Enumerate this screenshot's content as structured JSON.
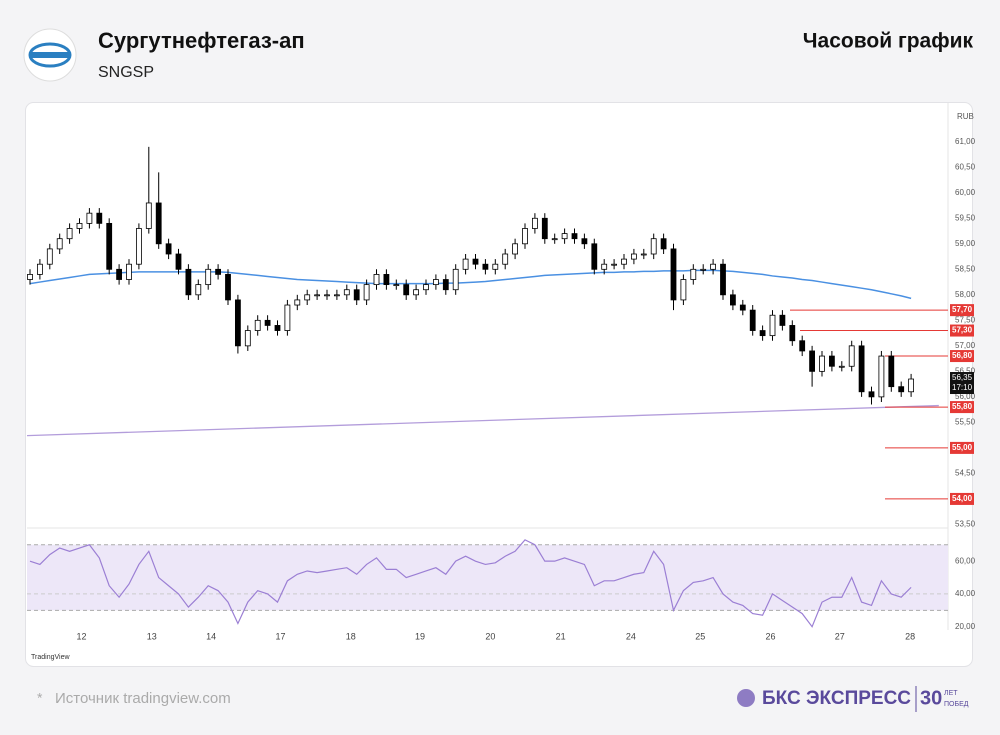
{
  "header": {
    "title": "Сургутнефтегаз-ап",
    "ticker": "SNGSP",
    "timeframe": "Часовой график"
  },
  "footer": {
    "star": "*",
    "source": "Источник tradingview.com",
    "brand": "БКС ЭКСПРЕСС",
    "years": "30",
    "years_text1": "ЛЕТ",
    "years_text2": "ПОБЕД"
  },
  "chart_data": {
    "type": "candlestick",
    "currency": "RUB",
    "watermark": "TradingView",
    "ylim": [
      53.45,
      61.72
    ],
    "yticks": [
      {
        "value": 61,
        "label": "61,00"
      },
      {
        "value": 60.5,
        "label": "60,50"
      },
      {
        "value": 60,
        "label": "60,00"
      },
      {
        "value": 59.5,
        "label": "59,50"
      },
      {
        "value": 59,
        "label": "59,00"
      },
      {
        "value": 58.5,
        "label": "58,50"
      },
      {
        "value": 58,
        "label": "58,00"
      },
      {
        "value": 57.5,
        "label": "57,50"
      },
      {
        "value": 57,
        "label": "57,00"
      },
      {
        "value": 56.5,
        "label": "56,50"
      },
      {
        "value": 56,
        "label": "56,00"
      },
      {
        "value": 55.5,
        "label": "55,50"
      },
      {
        "value": 54.5,
        "label": "54,50"
      },
      {
        "value": 53.5,
        "label": "53,50"
      }
    ],
    "xticks": [
      {
        "value": 5.2,
        "label": "12"
      },
      {
        "value": 12.3,
        "label": "13"
      },
      {
        "value": 18.3,
        "label": "14"
      },
      {
        "value": 25.3,
        "label": "17"
      },
      {
        "value": 32.4,
        "label": "18"
      },
      {
        "value": 39.4,
        "label": "19"
      },
      {
        "value": 46.5,
        "label": "20"
      },
      {
        "value": 53.6,
        "label": "21"
      },
      {
        "value": 60.7,
        "label": "24"
      },
      {
        "value": 67.7,
        "label": "25"
      },
      {
        "value": 74.8,
        "label": "26"
      },
      {
        "value": 81.8,
        "label": "27"
      },
      {
        "value": 88.9,
        "label": "28"
      }
    ],
    "open": [
      58.3,
      58.4,
      58.6,
      58.9,
      59.1,
      59.3,
      59.4,
      59.6,
      59.4,
      58.5,
      58.3,
      58.6,
      59.3,
      59.8,
      59.0,
      58.8,
      58.5,
      58.0,
      58.2,
      58.5,
      58.4,
      57.9,
      57.0,
      57.3,
      57.5,
      57.4,
      57.3,
      57.8,
      57.9,
      58.0,
      58.0,
      58.0,
      58.0,
      58.1,
      57.9,
      58.2,
      58.4,
      58.2,
      58.2,
      58.0,
      58.1,
      58.2,
      58.3,
      58.1,
      58.5,
      58.7,
      58.6,
      58.5,
      58.6,
      58.8,
      59.0,
      59.3,
      59.5,
      59.1,
      59.1,
      59.2,
      59.1,
      59.0,
      58.5,
      58.6,
      58.6,
      58.7,
      58.8,
      58.8,
      59.1,
      58.9,
      57.9,
      58.3,
      58.5,
      58.5,
      58.6,
      58.0,
      57.8,
      57.7,
      57.3,
      57.2,
      57.6,
      57.4,
      57.1,
      56.9,
      56.5,
      56.8,
      56.6,
      56.6,
      57.0,
      56.1,
      56.0,
      56.8,
      56.2,
      56.1
    ],
    "high": [
      58.5,
      58.7,
      59.0,
      59.2,
      59.4,
      59.5,
      59.7,
      59.7,
      59.5,
      58.6,
      58.7,
      59.4,
      60.9,
      60.4,
      59.1,
      58.9,
      58.6,
      58.3,
      58.6,
      58.6,
      58.5,
      58.0,
      57.4,
      57.6,
      57.6,
      57.5,
      57.9,
      58.0,
      58.1,
      58.1,
      58.1,
      58.1,
      58.2,
      58.2,
      58.3,
      58.5,
      58.5,
      58.3,
      58.3,
      58.2,
      58.3,
      58.4,
      58.4,
      58.6,
      58.8,
      58.8,
      58.7,
      58.7,
      58.9,
      59.1,
      59.4,
      59.6,
      59.6,
      59.2,
      59.3,
      59.3,
      59.2,
      59.1,
      58.7,
      58.7,
      58.8,
      58.9,
      58.9,
      59.2,
      59.2,
      59.0,
      58.4,
      58.6,
      58.6,
      58.7,
      58.7,
      58.1,
      57.9,
      57.8,
      57.4,
      57.7,
      57.7,
      57.5,
      57.2,
      57.0,
      56.9,
      56.9,
      56.7,
      57.1,
      57.1,
      56.2,
      56.9,
      56.9,
      56.3,
      56.45
    ],
    "low": [
      58.2,
      58.3,
      58.5,
      58.8,
      59.0,
      59.2,
      59.3,
      59.3,
      58.4,
      58.2,
      58.2,
      58.5,
      59.2,
      58.9,
      58.7,
      58.4,
      57.9,
      57.9,
      58.1,
      58.3,
      57.8,
      56.85,
      56.9,
      57.2,
      57.3,
      57.2,
      57.2,
      57.7,
      57.8,
      57.9,
      57.9,
      57.9,
      57.9,
      57.8,
      57.8,
      58.1,
      58.1,
      58.1,
      57.9,
      57.9,
      58.0,
      58.1,
      58.0,
      58.0,
      58.4,
      58.5,
      58.4,
      58.4,
      58.5,
      58.7,
      58.9,
      59.2,
      59.0,
      59.0,
      59.0,
      59.0,
      58.9,
      58.4,
      58.4,
      58.5,
      58.5,
      58.6,
      58.7,
      58.7,
      58.8,
      57.7,
      57.8,
      58.2,
      58.4,
      58.4,
      57.9,
      57.7,
      57.6,
      57.2,
      57.1,
      57.1,
      57.3,
      57.0,
      56.8,
      56.2,
      56.4,
      56.5,
      56.5,
      56.5,
      56.0,
      55.85,
      55.9,
      56.1,
      56.0,
      56.0
    ],
    "close": [
      58.4,
      58.6,
      58.9,
      59.1,
      59.3,
      59.4,
      59.6,
      59.4,
      58.5,
      58.3,
      58.6,
      59.3,
      59.8,
      59.0,
      58.8,
      58.5,
      58.0,
      58.2,
      58.5,
      58.4,
      57.9,
      57.0,
      57.3,
      57.5,
      57.4,
      57.3,
      57.8,
      57.9,
      58.0,
      58.0,
      58.0,
      58.0,
      58.1,
      57.9,
      58.2,
      58.4,
      58.2,
      58.2,
      58.0,
      58.1,
      58.2,
      58.3,
      58.1,
      58.5,
      58.7,
      58.6,
      58.5,
      58.6,
      58.8,
      59.0,
      59.3,
      59.5,
      59.1,
      59.1,
      59.2,
      59.1,
      59.0,
      58.5,
      58.6,
      58.6,
      58.7,
      58.8,
      58.8,
      59.1,
      58.9,
      57.9,
      58.3,
      58.5,
      58.5,
      58.6,
      58.0,
      57.8,
      57.7,
      57.3,
      57.2,
      57.6,
      57.4,
      57.1,
      56.9,
      56.5,
      56.8,
      56.6,
      56.6,
      57.0,
      56.1,
      56.0,
      56.8,
      56.2,
      56.1,
      56.35
    ],
    "ma": {
      "color": "#4a90e2",
      "values": [
        58.22,
        58.25,
        58.28,
        58.31,
        58.34,
        58.37,
        58.4,
        58.41,
        58.42,
        58.43,
        58.44,
        58.45,
        58.45,
        58.45,
        58.45,
        58.45,
        58.45,
        58.45,
        58.45,
        58.45,
        58.44,
        58.42,
        58.4,
        58.38,
        58.36,
        58.34,
        58.32,
        58.3,
        58.29,
        58.28,
        58.27,
        58.26,
        58.25,
        58.24,
        58.23,
        58.22,
        58.22,
        58.22,
        58.22,
        58.22,
        58.22,
        58.22,
        58.23,
        58.23,
        58.24,
        58.25,
        58.26,
        58.28,
        58.3,
        58.32,
        58.34,
        58.36,
        58.38,
        58.39,
        58.4,
        58.41,
        58.42,
        58.43,
        58.44,
        58.44,
        58.45,
        58.45,
        58.46,
        58.46,
        58.47,
        58.47,
        58.47,
        58.48,
        58.48,
        58.48,
        58.47,
        58.46,
        58.44,
        58.42,
        58.4,
        58.37,
        58.35,
        58.33,
        58.3,
        58.28,
        58.25,
        58.22,
        58.19,
        58.16,
        58.13,
        58.1,
        58.06,
        58.02,
        57.98,
        57.93
      ]
    },
    "trendline": {
      "color": "#b39ddb",
      "x": [
        -0.3,
        91.8
      ],
      "y": [
        55.24,
        55.83
      ]
    },
    "levels": {
      "color": "#e53935",
      "values": [
        57.7,
        57.3,
        56.8,
        55.8,
        55.0,
        54.0
      ],
      "value_labels": [
        "57,70",
        "57,30",
        "56,80",
        "55,80",
        "55,00",
        "54,00"
      ]
    },
    "last": {
      "value": 56.35,
      "label": "56,35",
      "time": "17:10"
    },
    "rsi": {
      "color": "#9b7fd4",
      "ylim": [
        18,
        79
      ],
      "band": [
        30,
        70
      ],
      "yticks": [
        {
          "value": 60,
          "label": "60,00"
        },
        {
          "value": 40,
          "label": "40,00"
        },
        {
          "value": 20,
          "label": "20,00"
        }
      ],
      "values": [
        60,
        58,
        64,
        68,
        66,
        68,
        70,
        62,
        45,
        38,
        46,
        58,
        66,
        50,
        45,
        40,
        32,
        38,
        45,
        42,
        35,
        22,
        35,
        42,
        40,
        35,
        48,
        52,
        54,
        53,
        54,
        55,
        56,
        52,
        58,
        62,
        55,
        55,
        50,
        52,
        54,
        56,
        52,
        60,
        63,
        60,
        58,
        59,
        63,
        66,
        73,
        70,
        60,
        60,
        62,
        60,
        58,
        45,
        48,
        48,
        50,
        52,
        53,
        66,
        58,
        30,
        42,
        47,
        48,
        50,
        40,
        35,
        33,
        28,
        27,
        40,
        36,
        32,
        28,
        20,
        35,
        38,
        38,
        50,
        35,
        33,
        48,
        40,
        38,
        44
      ]
    }
  }
}
